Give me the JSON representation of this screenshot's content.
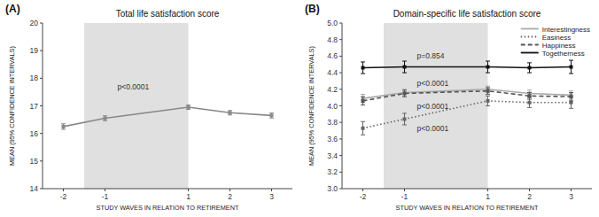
{
  "chart_data": [
    {
      "type": "line",
      "title": "Total life satisfaction score",
      "panel_label": "(A)",
      "xlabel": "STUDY WAVES IN RELATION TO RETIREMENT",
      "ylabel": "MEAN (95% CONFIDENCE INTERVALS)",
      "x": [
        -2,
        -1,
        1,
        2,
        3
      ],
      "values": [
        16.25,
        16.55,
        16.95,
        16.75,
        16.65
      ],
      "errors": [
        0.1,
        0.09,
        0.08,
        0.08,
        0.09
      ],
      "color": "#888888",
      "marker": "square",
      "line_style": "solid",
      "xlim": [
        -2.5,
        3.5
      ],
      "xticks": [
        -2,
        -1,
        1,
        2,
        3
      ],
      "ylim": [
        14,
        20
      ],
      "yticks": [
        14,
        15,
        16,
        17,
        18,
        19,
        20
      ],
      "grid": false,
      "shade": {
        "x": [
          -1.5,
          1
        ],
        "color": "#e0e0e0"
      },
      "annotations": [
        {
          "text": "p<0.0001",
          "x": -0.7,
          "y": 17.6
        }
      ]
    },
    {
      "type": "line",
      "title": "Domain-specific life satisfaction score",
      "panel_label": "(B)",
      "xlabel": "STUDY WAVES IN RELATION TO RETIREMENT",
      "ylabel": "MEAN (95% CONFIDENCE INTERVALS)",
      "x": [
        -2,
        -1,
        1,
        2,
        3
      ],
      "xlim": [
        -2.5,
        3.5
      ],
      "xticks": [
        -2,
        -1,
        1,
        2,
        3
      ],
      "ylim": [
        3,
        5
      ],
      "yticks": [
        {
          "value": 3,
          "label": "3.0"
        },
        3.2,
        3.4,
        3.6,
        3.8,
        {
          "value": 4,
          "label": "4.0"
        },
        4.2,
        4.4,
        4.6,
        4.8,
        {
          "value": 5,
          "label": "5.0"
        }
      ],
      "grid": false,
      "legend": "upper right",
      "shade": {
        "x": [
          -1.5,
          1
        ],
        "color": "#e0e0e0"
      },
      "series": [
        {
          "name": "Interestingness",
          "color": "#aaaaaa",
          "line_style": "solid",
          "marker": "square",
          "values": [
            4.09,
            4.16,
            4.2,
            4.15,
            4.13
          ],
          "errors": [
            0.05,
            0.04,
            0.04,
            0.04,
            0.05
          ]
        },
        {
          "name": "Easiness",
          "color": "#666666",
          "line_style": "dotted",
          "marker": "square",
          "values": [
            3.73,
            3.84,
            4.06,
            4.04,
            4.04
          ],
          "errors": [
            0.08,
            0.07,
            0.06,
            0.06,
            0.07
          ]
        },
        {
          "name": "Happiness",
          "color": "#555555",
          "line_style": "dashed",
          "marker": "square",
          "values": [
            4.06,
            4.15,
            4.18,
            4.12,
            4.11
          ],
          "errors": [
            0.05,
            0.04,
            0.04,
            0.04,
            0.05
          ]
        },
        {
          "name": "Togetherness",
          "color": "#111111",
          "line_style": "solid",
          "marker": "square",
          "values": [
            4.46,
            4.47,
            4.47,
            4.46,
            4.47
          ],
          "errors": [
            0.07,
            0.07,
            0.07,
            0.06,
            0.08
          ]
        }
      ],
      "annotations": [
        {
          "text": "p<0.0001",
          "x": -0.7,
          "y": 4.24
        },
        {
          "text": "p<0.0001",
          "x": -0.7,
          "y": 3.7
        },
        {
          "text": "p<0.0001",
          "x": -0.7,
          "y": 3.96
        },
        {
          "text": "p=0.854",
          "x": -0.7,
          "y": 4.57
        }
      ]
    }
  ]
}
